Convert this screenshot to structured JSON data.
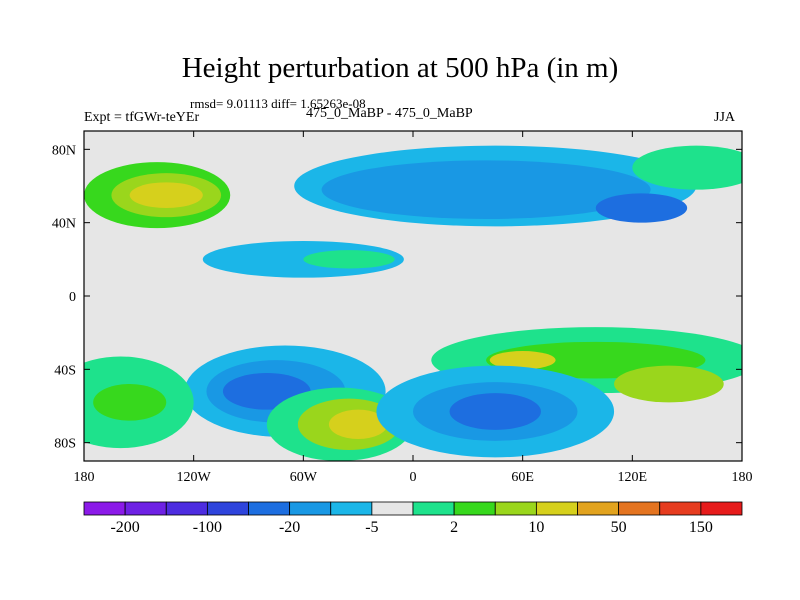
{
  "chart_data": {
    "type": "heatmap",
    "title": "Height perturbation at 500 hPa (in m)",
    "stats_line": "rmsd= 9.01113 diff= 1.65263e-08",
    "left_label": "Expt = tfGWr-teYEr",
    "center_label": "475_0_MaBP - 475_0_MaBP",
    "right_label": "JJA",
    "x_ticks": [
      "180",
      "120W",
      "60W",
      "0",
      "60E",
      "120E",
      "180"
    ],
    "y_ticks": [
      "80N",
      "40N",
      "0",
      "40S",
      "80S"
    ],
    "x_range": [
      -180,
      180
    ],
    "y_range": [
      -90,
      90
    ],
    "colorbar": {
      "colors": [
        "#8b1ae8",
        "#6e21e4",
        "#4d2ce0",
        "#2e44dc",
        "#1d6ee0",
        "#1998e4",
        "#1bb6e8",
        "#e6e6e6",
        "#1ee28c",
        "#37d81d",
        "#9ad61c",
        "#d6d01c",
        "#e2a31e",
        "#e47420",
        "#e63c1f",
        "#e61b1b"
      ],
      "labels": [
        "-200",
        "-100",
        "-20",
        "-5",
        "2",
        "10",
        "50",
        "150"
      ]
    },
    "regions": [
      {
        "lon": -140,
        "lat": 55,
        "rx": 40,
        "ry": 18,
        "level": 9
      },
      {
        "lon": -135,
        "lat": 55,
        "rx": 30,
        "ry": 12,
        "level": 10
      },
      {
        "lon": -135,
        "lat": 55,
        "rx": 20,
        "ry": 7,
        "level": 11
      },
      {
        "lon": 45,
        "lat": 60,
        "rx": 110,
        "ry": 22,
        "level": 6
      },
      {
        "lon": 40,
        "lat": 58,
        "rx": 90,
        "ry": 16,
        "level": 5
      },
      {
        "lon": 125,
        "lat": 48,
        "rx": 25,
        "ry": 8,
        "level": 4
      },
      {
        "lon": 155,
        "lat": 70,
        "rx": 35,
        "ry": 12,
        "level": 8
      },
      {
        "lon": -60,
        "lat": 20,
        "rx": 55,
        "ry": 10,
        "level": 6
      },
      {
        "lon": -35,
        "lat": 20,
        "rx": 25,
        "ry": 5,
        "level": 8
      },
      {
        "lon": 100,
        "lat": -35,
        "rx": 90,
        "ry": 18,
        "level": 8
      },
      {
        "lon": 100,
        "lat": -35,
        "rx": 60,
        "ry": 10,
        "level": 9
      },
      {
        "lon": 60,
        "lat": -35,
        "rx": 18,
        "ry": 5,
        "level": 11
      },
      {
        "lon": 140,
        "lat": -48,
        "rx": 30,
        "ry": 10,
        "level": 10
      },
      {
        "lon": -70,
        "lat": -52,
        "rx": 55,
        "ry": 25,
        "level": 6
      },
      {
        "lon": -75,
        "lat": -52,
        "rx": 38,
        "ry": 17,
        "level": 5
      },
      {
        "lon": -80,
        "lat": -52,
        "rx": 24,
        "ry": 10,
        "level": 4
      },
      {
        "lon": -40,
        "lat": -70,
        "rx": 40,
        "ry": 20,
        "level": 8
      },
      {
        "lon": -35,
        "lat": -70,
        "rx": 28,
        "ry": 14,
        "level": 10
      },
      {
        "lon": -30,
        "lat": -70,
        "rx": 16,
        "ry": 8,
        "level": 11
      },
      {
        "lon": 45,
        "lat": -63,
        "rx": 65,
        "ry": 25,
        "level": 6
      },
      {
        "lon": 45,
        "lat": -63,
        "rx": 45,
        "ry": 16,
        "level": 5
      },
      {
        "lon": 45,
        "lat": -63,
        "rx": 25,
        "ry": 10,
        "level": 4
      },
      {
        "lon": -160,
        "lat": -58,
        "rx": 40,
        "ry": 25,
        "level": 8
      },
      {
        "lon": -155,
        "lat": -58,
        "rx": 20,
        "ry": 10,
        "level": 9
      }
    ]
  }
}
